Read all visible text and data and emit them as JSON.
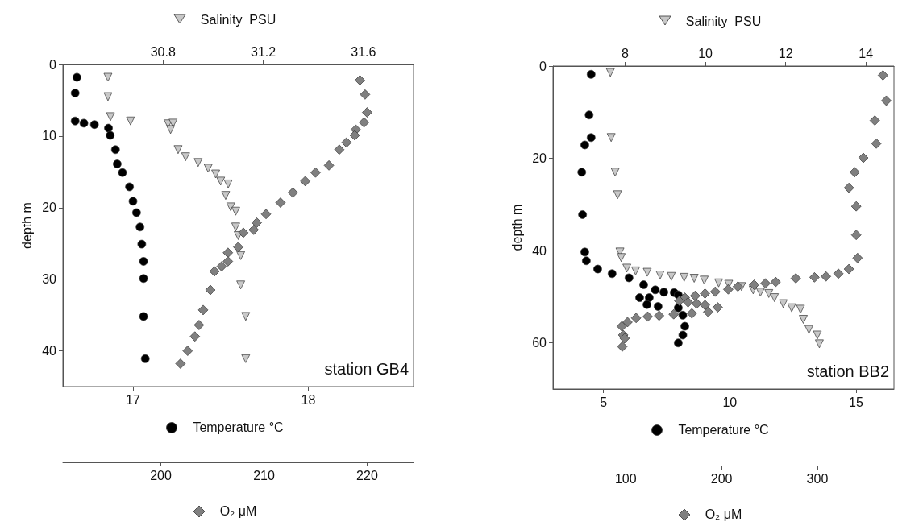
{
  "chart_data": [
    {
      "type": "scatter",
      "ylabel": "depth m",
      "xlabel": "Temperature °C",
      "x2label": "Salinity  PSU",
      "xlim": [
        16.6,
        18.6
      ],
      "xticks": [
        17,
        18
      ],
      "x2lim": [
        30.4,
        31.8
      ],
      "x2ticks": [
        30.8,
        31.2,
        31.6
      ],
      "ylim": [
        45,
        0
      ],
      "yticks": [
        0,
        10,
        20,
        30,
        40
      ],
      "annotations": [
        "station GB4"
      ],
      "series": [
        {
          "marker": "circle",
          "color": "#000000",
          "x": [
            16.68,
            16.67,
            16.67,
            16.72,
            16.78,
            16.86,
            16.87,
            16.9,
            16.91,
            16.94,
            16.98,
            17.0,
            17.02,
            17.04,
            17.05,
            17.06,
            17.06,
            17.06,
            17.07
          ],
          "values": [
            1.8,
            4,
            7.9,
            8.2,
            8.4,
            8.9,
            9.9,
            11.9,
            13.9,
            15.1,
            17.1,
            19.1,
            20.7,
            22.7,
            25.1,
            27.5,
            29.9,
            35.2,
            41.1
          ]
        },
        {
          "axis": "x2",
          "marker": "triangle",
          "color": "#c8c8c8",
          "x": [
            30.58,
            30.58,
            30.59,
            30.67,
            30.82,
            30.84,
            30.83,
            30.86,
            30.89,
            30.94,
            30.98,
            31.01,
            31.03,
            31.06,
            31.05,
            31.07,
            31.09,
            31.09,
            31.1,
            31.11,
            31.11,
            31.13,
            31.13
          ],
          "values": [
            1.8,
            4.5,
            7.3,
            7.9,
            8.3,
            8.2,
            9.1,
            11.9,
            12.9,
            13.7,
            14.5,
            15.3,
            16.3,
            16.7,
            18.3,
            19.9,
            20.5,
            22.7,
            23.9,
            26.7,
            30.8,
            35.2,
            41.1
          ]
        }
      ]
    },
    {
      "type": "scatter",
      "xlabel": "O₂ μM",
      "xlim": [
        190.5,
        224.5
      ],
      "xticks": [
        200,
        210,
        220
      ],
      "ylim": [
        45,
        0
      ],
      "tick_labels": "x",
      "series": [
        {
          "marker": "diamond",
          "color": "#808080",
          "x": [
            219.3,
            219.8,
            220.0,
            219.7,
            218.9,
            218.8,
            218.0,
            217.3,
            216.3,
            215.0,
            214.0,
            212.8,
            211.6,
            210.2,
            209.3,
            209.0,
            208.0,
            207.5,
            206.5,
            206.5,
            205.9,
            205.2,
            204.8,
            204.1,
            203.7,
            203.3,
            202.6,
            201.9
          ],
          "values": [
            2.2,
            4.2,
            6.7,
            8.1,
            9.1,
            9.9,
            10.9,
            11.9,
            14.1,
            15.1,
            16.3,
            17.9,
            19.3,
            20.9,
            22.1,
            23.1,
            23.5,
            25.5,
            26.3,
            27.5,
            28.2,
            28.9,
            31.5,
            34.3,
            36.4,
            38.0,
            40.0,
            41.8
          ]
        }
      ]
    },
    {
      "type": "scatter",
      "ylabel": "depth m",
      "xlabel": "Temperature °C",
      "x2label": "Salinity  PSU",
      "xlim": [
        3,
        16.5
      ],
      "xticks": [
        5,
        10,
        15
      ],
      "x2lim": [
        6.2,
        14.7
      ],
      "x2ticks": [
        8,
        10,
        12,
        14
      ],
      "ylim": [
        70,
        0
      ],
      "yticks": [
        0,
        20,
        40,
        60
      ],
      "annotations": [
        "station BB2"
      ],
      "series": [
        {
          "marker": "circle",
          "color": "#000000",
          "x": [
            4.51,
            4.43,
            4.51,
            4.26,
            4.14,
            4.17,
            4.26,
            4.32,
            4.77,
            5.34,
            6.01,
            6.59,
            7.05,
            7.39,
            7.8,
            7.96,
            6.43,
            6.81,
            6.72,
            7.16,
            7.96,
            8.14,
            8.22,
            8.14,
            7.96
          ],
          "values": [
            1.8,
            10.6,
            15.5,
            17.1,
            23.0,
            32.2,
            40.3,
            42.2,
            44.0,
            45.0,
            45.9,
            47.4,
            48.5,
            49.0,
            49.1,
            49.6,
            50.2,
            50.2,
            51.7,
            52.1,
            52.4,
            54.0,
            56.4,
            58.3,
            60.0
          ]
        },
        {
          "axis": "x2",
          "marker": "triangle",
          "color": "#c8c8c8",
          "x": [
            7.63,
            7.65,
            7.75,
            7.81,
            7.87,
            7.9,
            8.04,
            8.26,
            8.55,
            8.87,
            9.15,
            9.47,
            9.72,
            9.97,
            10.33,
            10.58,
            10.9,
            11.19,
            11.37,
            11.58,
            11.72,
            11.94,
            12.15,
            12.37,
            12.44,
            12.58,
            12.79,
            12.84
          ],
          "values": [
            1.4,
            15.5,
            23.0,
            27.9,
            40.3,
            41.5,
            43.8,
            44.4,
            44.7,
            45.3,
            45.6,
            45.8,
            46.0,
            46.4,
            47.0,
            47.3,
            47.8,
            48.5,
            49.0,
            49.3,
            50.2,
            51.5,
            52.4,
            52.7,
            54.9,
            57.1,
            58.3,
            60.2
          ]
        }
      ]
    },
    {
      "type": "scatter",
      "xlabel": "O₂ μM",
      "xlim": [
        24,
        380
      ],
      "xticks": [
        100,
        200,
        300
      ],
      "ylim": [
        70,
        0
      ],
      "tick_labels": "x",
      "series": [
        {
          "marker": "diamond",
          "color": "#808080",
          "x": [
            368.5,
            372,
            360,
            361.6,
            348,
            339,
            333,
            340.6,
            340.6,
            342,
            333,
            322,
            309,
            297,
            277.5,
            256.5,
            245.8,
            234,
            217,
            207,
            193.4,
            182.7,
            172.4,
            161.6,
            155.8,
            165,
            174,
            182.7,
            196,
            186,
            169,
            150,
            134.8,
            122.9,
            110.8,
            101.8,
            95.8,
            97.3,
            98.8,
            96.4
          ],
          "values": [
            2.0,
            7.5,
            11.8,
            16.8,
            19.9,
            23.0,
            26.4,
            30.4,
            36.6,
            41.6,
            44.0,
            45.0,
            45.6,
            45.8,
            46.0,
            46.8,
            47.1,
            47.4,
            47.8,
            48.4,
            48.9,
            49.3,
            49.8,
            50.2,
            50.9,
            51.2,
            51.5,
            51.8,
            52.3,
            53.3,
            53.6,
            53.8,
            54.1,
            54.3,
            54.6,
            55.5,
            56.4,
            58.3,
            59.0,
            60.8
          ]
        }
      ]
    }
  ]
}
